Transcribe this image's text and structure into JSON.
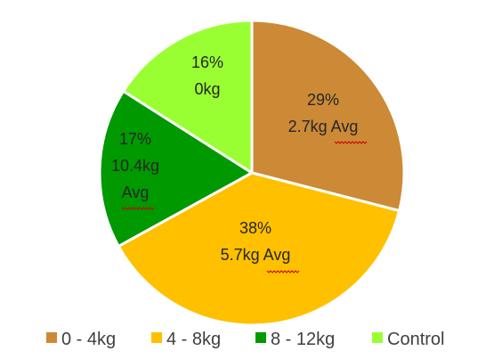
{
  "chart_data": {
    "type": "pie",
    "title": "",
    "slices": [
      {
        "category": "0 - 4kg",
        "percent": 29,
        "label_lines": [
          "29%",
          "2.7kg Avg"
        ],
        "color": "#cc8a36"
      },
      {
        "category": "4 - 8kg",
        "percent": 38,
        "label_lines": [
          "38%",
          "5.7kg Avg"
        ],
        "color": "#ffc000"
      },
      {
        "category": "8 - 12kg",
        "percent": 17,
        "label_lines": [
          "17%",
          "10.4kg",
          "Avg"
        ],
        "color": "#009900"
      },
      {
        "category": "Control",
        "percent": 16,
        "label_lines": [
          "16%",
          "0kg"
        ],
        "color": "#99ff33"
      }
    ],
    "legend": {
      "placement": "bottom",
      "entries": [
        "0 - 4kg",
        "4 - 8kg",
        "8 - 12kg",
        "Control"
      ]
    }
  }
}
